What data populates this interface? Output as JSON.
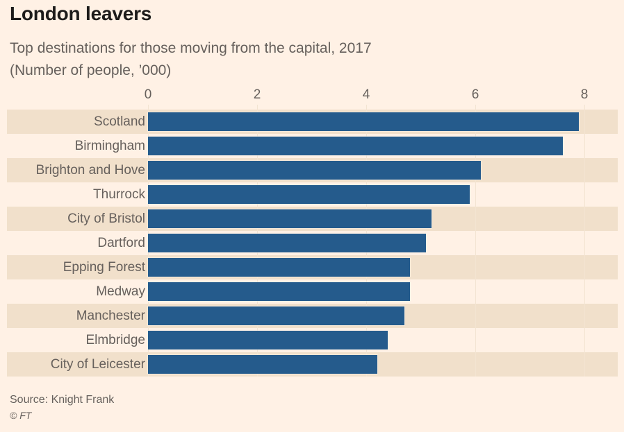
{
  "header": {
    "title": "London leavers",
    "subtitle_line1": "Top destinations for those moving from the capital, 2017",
    "subtitle_line2": "(Number of people, ’000)"
  },
  "chart_data": {
    "type": "bar",
    "orientation": "horizontal",
    "title": "London leavers",
    "subtitle": "Top destinations for those moving from the capital, 2017 (Number of people, ’000)",
    "categories": [
      "Scotland",
      "Birmingham",
      "Brighton and Hove",
      "Thurrock",
      "City of Bristol",
      "Dartford",
      "Epping Forest",
      "Medway",
      "Manchester",
      "Elmbridge",
      "City of Leicester"
    ],
    "values": [
      7.9,
      7.6,
      6.1,
      5.9,
      5.2,
      5.1,
      4.8,
      4.8,
      4.7,
      4.4,
      4.2
    ],
    "xlabel": "Number of people, ’000",
    "ylabel": "",
    "xlim": [
      0,
      8
    ],
    "ticks": [
      0,
      2,
      4,
      6,
      8
    ],
    "grid": "vertical gridlines at ticks, zebra row stripes",
    "legend": "none",
    "bar_color": "#255B8C",
    "stripe_color": "#F1E0CB",
    "background_color": "#FFF1E5",
    "text_color": "#66605C"
  },
  "footer": {
    "source": "Source: Knight Frank",
    "copyright": "© FT"
  }
}
